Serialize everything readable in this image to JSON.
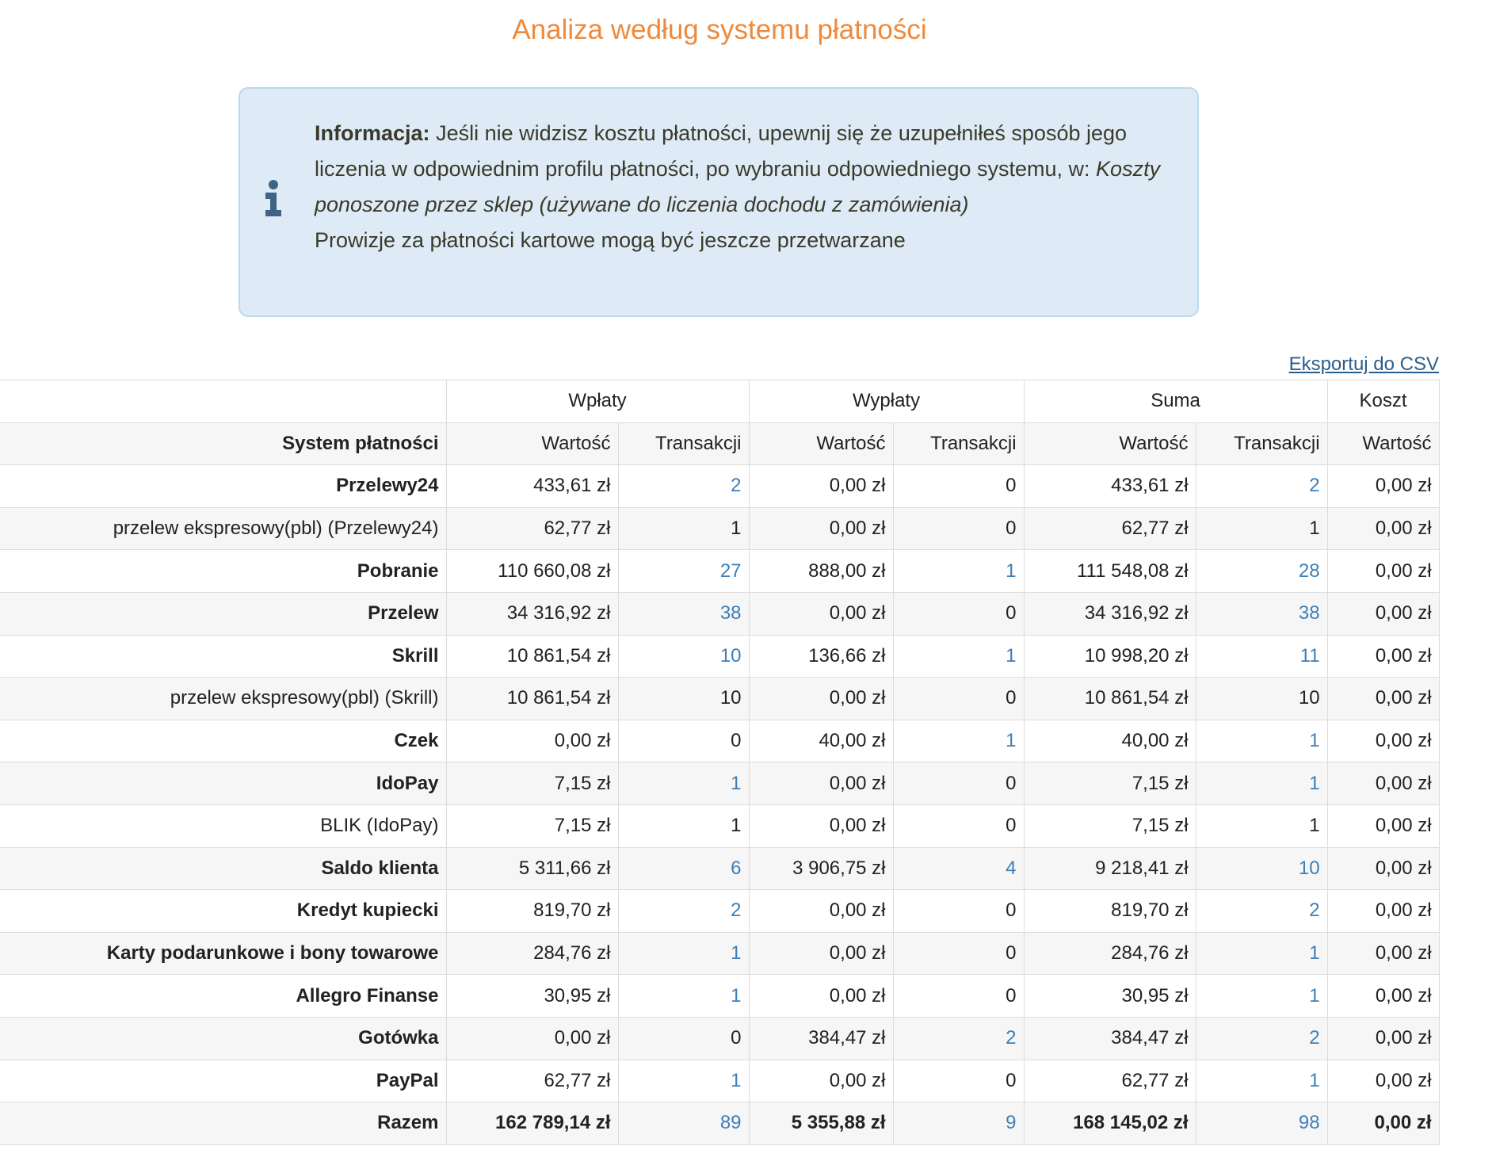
{
  "title": "Analiza według systemu płatności",
  "info": {
    "label": "Informacja:",
    "text": "Jeśli nie widzisz kosztu płatności, upewnij się że uzupełniłeś sposób jego liczenia w odpowiednim profilu płatności, po wybraniu odpowiedniego systemu, w:",
    "italic": "Koszty ponoszone przez sklep (używane do liczenia dochodu z zamówienia)",
    "line2": "Prowizje za płatności kartowe mogą być jeszcze przetwarzane"
  },
  "export": "Eksportuj do CSV",
  "table": {
    "groups": [
      "Wpłaty",
      "Wypłaty",
      "Suma",
      "Koszt"
    ],
    "columns": [
      "System płatności",
      "Wartość",
      "Transakcji",
      "Wartość",
      "Transakcji",
      "Wartość",
      "Transakcji",
      "Wartość"
    ],
    "rows": [
      {
        "cells": [
          "Przelewy24",
          "433,61 zł",
          "2",
          "0,00 zł",
          "0",
          "433,61 zł",
          "2",
          "0,00 zł"
        ],
        "children": [
          {
            "cells": [
              "przelew ekspresowy(pbl) (Przelewy24)",
              "62,77 zł",
              "1",
              "0,00 zł",
              "0",
              "62,77 zł",
              "1",
              "0,00 zł"
            ]
          }
        ]
      },
      {
        "cells": [
          "Pobranie",
          "110 660,08 zł",
          "27",
          "888,00 zł",
          "1",
          "111 548,08 zł",
          "28",
          "0,00 zł"
        ]
      },
      {
        "cells": [
          "Przelew",
          "34 316,92 zł",
          "38",
          "0,00 zł",
          "0",
          "34 316,92 zł",
          "38",
          "0,00 zł"
        ]
      },
      {
        "cells": [
          "Skrill",
          "10 861,54 zł",
          "10",
          "136,66 zł",
          "1",
          "10 998,20 zł",
          "11",
          "0,00 zł"
        ],
        "children": [
          {
            "cells": [
              "przelew ekspresowy(pbl) (Skrill)",
              "10 861,54 zł",
              "10",
              "0,00 zł",
              "0",
              "10 861,54 zł",
              "10",
              "0,00 zł"
            ]
          }
        ]
      },
      {
        "cells": [
          "Czek",
          "0,00 zł",
          "0",
          "40,00 zł",
          "1",
          "40,00 zł",
          "1",
          "0,00 zł"
        ]
      },
      {
        "cells": [
          "IdoPay",
          "7,15 zł",
          "1",
          "0,00 zł",
          "0",
          "7,15 zł",
          "1",
          "0,00 zł"
        ],
        "children": [
          {
            "cells": [
              "BLIK (IdoPay)",
              "7,15 zł",
              "1",
              "0,00 zł",
              "0",
              "7,15 zł",
              "1",
              "0,00 zł"
            ]
          }
        ]
      },
      {
        "cells": [
          "Saldo klienta",
          "5 311,66 zł",
          "6",
          "3 906,75 zł",
          "4",
          "9 218,41 zł",
          "10",
          "0,00 zł"
        ]
      },
      {
        "cells": [
          "Kredyt kupiecki",
          "819,70 zł",
          "2",
          "0,00 zł",
          "0",
          "819,70 zł",
          "2",
          "0,00 zł"
        ]
      },
      {
        "cells": [
          "Karty podarunkowe i bony towarowe",
          "284,76 zł",
          "1",
          "0,00 zł",
          "0",
          "284,76 zł",
          "1",
          "0,00 zł"
        ]
      },
      {
        "cells": [
          "Allegro Finanse",
          "30,95 zł",
          "1",
          "0,00 zł",
          "0",
          "30,95 zł",
          "1",
          "0,00 zł"
        ]
      },
      {
        "cells": [
          "Gotówka",
          "0,00 zł",
          "0",
          "384,47 zł",
          "2",
          "384,47 zł",
          "2",
          "0,00 zł"
        ]
      },
      {
        "cells": [
          "PayPal",
          "62,77 zł",
          "1",
          "0,00 zł",
          "0",
          "62,77 zł",
          "1",
          "0,00 zł"
        ]
      }
    ],
    "total": [
      "Razem",
      "162 789,14 zł",
      "89",
      "5 355,88 zł",
      "9",
      "168 145,02 zł",
      "98",
      "0,00 zł"
    ]
  }
}
